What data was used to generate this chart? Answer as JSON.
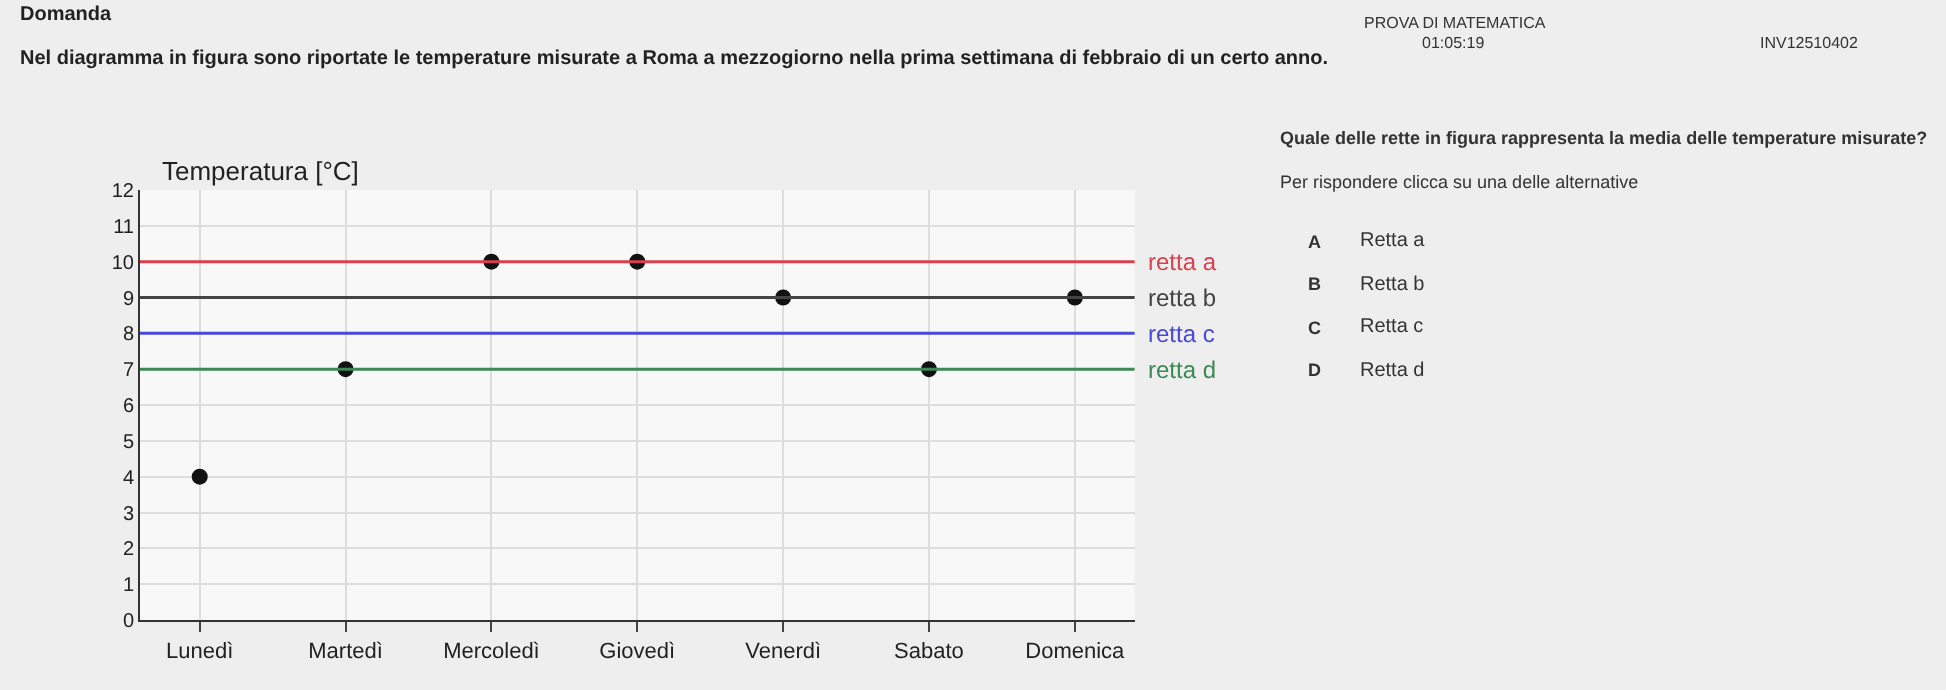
{
  "chart_data": {
    "type": "scatter",
    "title": "Nel diagramma in figura sono riportate le temperature misurate a Roma a mezzogiorno nella prima settimana di febbraio di un certo anno.",
    "subtitle": "Domanda",
    "ylabel": "Temperatura [°C]",
    "categories": [
      "Lunedì",
      "Martedì",
      "Mercoledì",
      "Giovedì",
      "Venerdì",
      "Sabato",
      "Domenica"
    ],
    "series": [
      {
        "color": "#111111",
        "values": [
          4,
          7,
          10,
          10,
          9,
          7,
          9
        ]
      }
    ],
    "marker": "circle",
    "ylim": [
      0,
      12
    ],
    "yticks": [
      0,
      1,
      2,
      3,
      4,
      5,
      6,
      7,
      8,
      9,
      10,
      11,
      12
    ],
    "grid": true,
    "ref_lines": [
      {
        "axis": "y",
        "value": 10,
        "label": "retta a",
        "color": "#d9414f"
      },
      {
        "axis": "y",
        "value": 9,
        "label": "retta b",
        "color": "#444444"
      },
      {
        "axis": "y",
        "value": 8,
        "label": "retta c",
        "color": "#4a4ad6"
      },
      {
        "axis": "y",
        "value": 7,
        "label": "retta d",
        "color": "#3d8a55"
      }
    ],
    "annotations": [
      "PROVA DI MATEMATICA",
      "01:05:19",
      "INV12510402",
      "Quale delle rette in figura rappresenta la media delle temperature misurate?",
      "Per rispondere clicca su una delle alternative",
      "A",
      "Retta a",
      "B",
      "Retta b",
      "C",
      "Retta c",
      "D",
      "Retta d"
    ]
  }
}
